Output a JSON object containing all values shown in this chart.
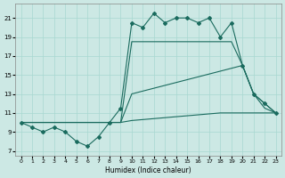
{
  "xlabel": "Humidex (Indice chaleur)",
  "bg_color": "#cce8e4",
  "line_color": "#1a6b5e",
  "grid_color": "#a8d8d0",
  "xlim": [
    -0.5,
    23.5
  ],
  "ylim": [
    6.5,
    22.5
  ],
  "xticks": [
    0,
    1,
    2,
    3,
    4,
    5,
    6,
    7,
    8,
    9,
    10,
    11,
    12,
    13,
    14,
    15,
    16,
    17,
    18,
    19,
    20,
    21,
    22,
    23
  ],
  "yticks": [
    7,
    9,
    11,
    13,
    15,
    17,
    19,
    21
  ],
  "hourly_x": [
    0,
    1,
    2,
    3,
    4,
    5,
    6,
    7,
    8,
    9,
    10,
    11,
    12,
    13,
    14,
    15,
    16,
    17,
    18,
    19,
    20,
    21,
    22,
    23
  ],
  "hourly_y": [
    10,
    9.5,
    9,
    9.5,
    9,
    8,
    7.5,
    8.5,
    10,
    11.5,
    20.5,
    20,
    21.5,
    20.5,
    21,
    21,
    20.5,
    21,
    19,
    20.5,
    16,
    13,
    12,
    11
  ],
  "diag1_x": [
    0,
    9,
    10,
    19,
    20,
    21,
    22,
    23
  ],
  "diag1_y": [
    10,
    10,
    18.5,
    18.5,
    16,
    13,
    11.5,
    11
  ],
  "diag2_x": [
    0,
    9,
    10,
    20,
    21,
    22,
    23
  ],
  "diag2_y": [
    10,
    10,
    13,
    16,
    13,
    12,
    11
  ],
  "flat_x": [
    0,
    1,
    2,
    3,
    4,
    5,
    6,
    7,
    8,
    9,
    10,
    11,
    12,
    13,
    14,
    15,
    16,
    17,
    18,
    19,
    20,
    21,
    22,
    23
  ],
  "flat_y": [
    10,
    10,
    10,
    10,
    10,
    10,
    10,
    10,
    10,
    10,
    10.2,
    10.3,
    10.4,
    10.5,
    10.6,
    10.7,
    10.8,
    10.9,
    11,
    11,
    11,
    11,
    11,
    11
  ]
}
